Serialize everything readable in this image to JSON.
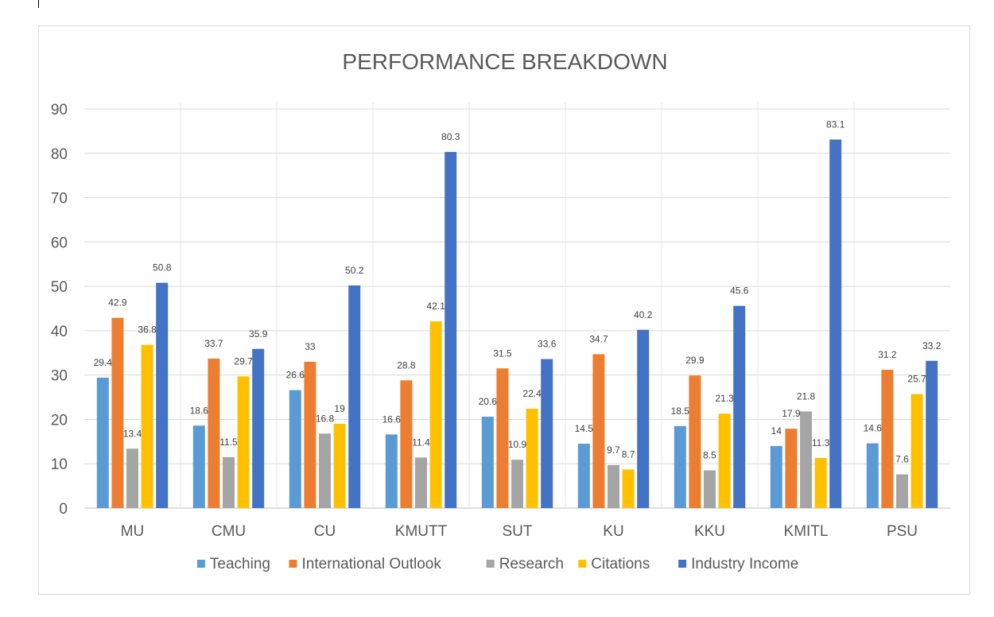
{
  "chart_data": {
    "type": "bar",
    "title": "PERFORMANCE BREAKDOWN",
    "xlabel": "",
    "ylabel": "",
    "categories": [
      "MU",
      "CMU",
      "CU",
      "KMUTT",
      "SUT",
      "KU",
      "KKU",
      "KMITL",
      "PSU"
    ],
    "ylim": [
      0,
      90
    ],
    "yticks": [
      0,
      10,
      20,
      30,
      40,
      50,
      60,
      70,
      80,
      90
    ],
    "grid": true,
    "legend_position": "bottom",
    "series": [
      {
        "name": "Teaching",
        "color": "#5b9bd5",
        "values": [
          29.4,
          18.6,
          26.6,
          16.6,
          20.6,
          14.5,
          18.5,
          14,
          14.6
        ]
      },
      {
        "name": "International Outlook",
        "color": "#ed7d31",
        "values": [
          42.9,
          33.7,
          33,
          28.8,
          31.5,
          34.7,
          29.9,
          17.9,
          31.2
        ]
      },
      {
        "name": "Research",
        "color": "#a5a5a5",
        "values": [
          13.4,
          11.5,
          16.8,
          11.4,
          10.9,
          9.7,
          8.5,
          21.8,
          7.6
        ]
      },
      {
        "name": "Citations",
        "color": "#ffc000",
        "values": [
          36.8,
          29.7,
          19,
          42.1,
          22.4,
          8.7,
          21.3,
          11.3,
          25.7
        ]
      },
      {
        "name": "Industry Income",
        "color": "#4472c4",
        "values": [
          50.8,
          35.9,
          50.2,
          80.3,
          33.6,
          40.2,
          45.6,
          83.1,
          33.2
        ]
      }
    ]
  }
}
